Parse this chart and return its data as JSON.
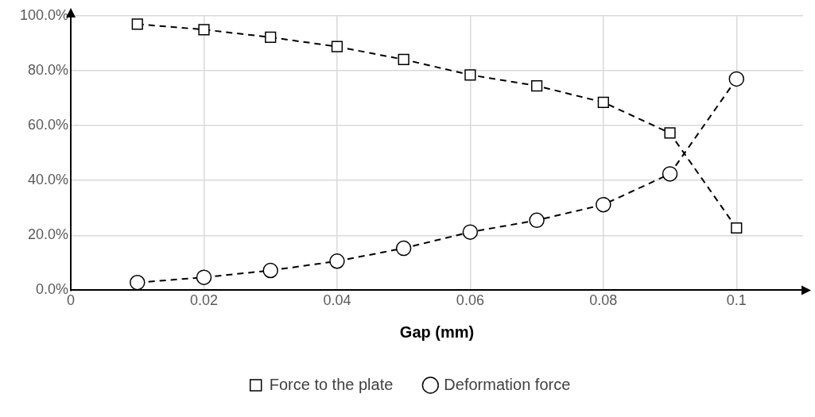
{
  "chart_data": {
    "type": "line",
    "xlabel": "Gap (mm)",
    "x": [
      0.01,
      0.02,
      0.03,
      0.04,
      0.05,
      0.06,
      0.07,
      0.08,
      0.09,
      0.1
    ],
    "series": [
      {
        "name": "Force to the plate",
        "color": "#000000",
        "marker": "square",
        "values": [
          97,
          95,
          92.2,
          88.8,
          84.1,
          78.5,
          74.5,
          68.5,
          57.3,
          22.7
        ]
      },
      {
        "name": "Deformation force",
        "color": "#000000",
        "marker": "circle",
        "values": [
          2.8,
          4.7,
          7.2,
          10.6,
          15.3,
          21.2,
          25.5,
          31.2,
          42.4,
          77
        ]
      }
    ],
    "xlim": [
      0,
      0.11
    ],
    "xticks": [
      0,
      0.02,
      0.04,
      0.06,
      0.08,
      0.1
    ],
    "ylim": [
      0,
      100
    ],
    "yticks": [
      {
        "value": 0,
        "label": "0.0%"
      },
      {
        "value": 20,
        "label": "20.0%"
      },
      {
        "value": 40,
        "label": "40.0%"
      },
      {
        "value": 60,
        "label": "60.0%"
      },
      {
        "value": 80,
        "label": "80.0%"
      },
      {
        "value": 100,
        "label": "100.0%"
      }
    ],
    "grid": true,
    "legend": "bottom",
    "line_style": "dashed"
  }
}
